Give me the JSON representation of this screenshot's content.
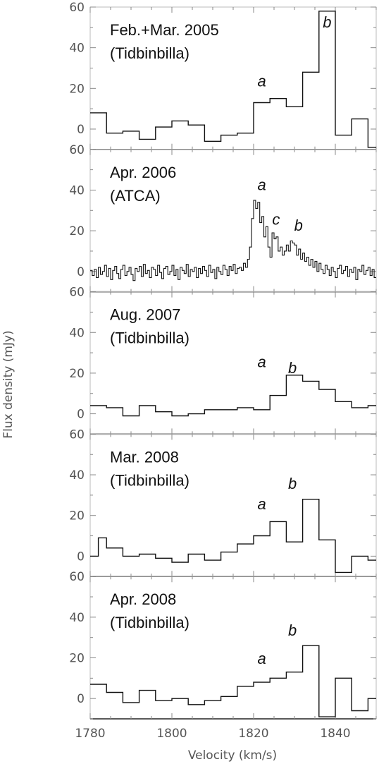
{
  "chart_data": {
    "type": "step",
    "xlabel": "Velocity (km/s)",
    "ylabel": "Flux density (mJy)",
    "xlim": [
      1780,
      1850
    ],
    "ylim": [
      -10,
      60
    ],
    "xticks": [
      "1780",
      "1800",
      "1820",
      "1840"
    ],
    "yticks": [
      "0",
      "20",
      "40",
      "60"
    ],
    "panels": [
      {
        "title_line1": "Feb.+Mar. 2005",
        "title_line2": "(Tidbinbilla)",
        "x": [
          1780.0,
          1784.0,
          1788.0,
          1792.0,
          1796.0,
          1800.0,
          1804.0,
          1808.0,
          1812.0,
          1816.0,
          1820.0,
          1824.0,
          1828.0,
          1832.0,
          1836.0,
          1840.0,
          1844.0,
          1848.0
        ],
        "y": [
          8,
          -2,
          -1,
          -5,
          1,
          4,
          2,
          -6,
          -3,
          -2,
          13,
          15,
          11,
          28,
          58,
          -3,
          5,
          -9
        ],
        "labels": [
          {
            "text": "a",
            "x": 1822.0,
            "y": 21
          },
          {
            "text": "b",
            "x": 1838.0,
            "y": 50
          }
        ]
      },
      {
        "title_line1": "Apr. 2006",
        "title_line2": "(ATCA)",
        "x": [
          1780.0,
          1780.5,
          1781.0,
          1781.5,
          1782.0,
          1782.5,
          1783.0,
          1783.5,
          1784.0,
          1784.5,
          1785.0,
          1785.5,
          1786.0,
          1786.5,
          1787.0,
          1787.5,
          1788.0,
          1788.5,
          1789.0,
          1789.5,
          1790.0,
          1790.5,
          1791.0,
          1791.5,
          1792.0,
          1792.5,
          1793.0,
          1793.5,
          1794.0,
          1794.5,
          1795.0,
          1795.5,
          1796.0,
          1796.5,
          1797.0,
          1797.5,
          1798.0,
          1798.5,
          1799.0,
          1799.5,
          1800.0,
          1800.5,
          1801.0,
          1801.5,
          1802.0,
          1802.5,
          1803.0,
          1803.5,
          1804.0,
          1804.5,
          1805.0,
          1805.5,
          1806.0,
          1806.5,
          1807.0,
          1807.5,
          1808.0,
          1808.5,
          1809.0,
          1809.5,
          1810.0,
          1810.5,
          1811.0,
          1811.5,
          1812.0,
          1812.5,
          1813.0,
          1813.5,
          1814.0,
          1814.5,
          1815.0,
          1815.5,
          1816.0,
          1816.5,
          1817.0,
          1817.5,
          1818.0,
          1818.5,
          1819.0,
          1819.5,
          1820.0,
          1820.5,
          1821.0,
          1821.5,
          1822.0,
          1822.5,
          1823.0,
          1823.5,
          1824.0,
          1824.5,
          1825.0,
          1825.5,
          1826.0,
          1826.5,
          1827.0,
          1827.5,
          1828.0,
          1828.5,
          1829.0,
          1829.5,
          1830.0,
          1830.5,
          1831.0,
          1831.5,
          1832.0,
          1832.5,
          1833.0,
          1833.5,
          1834.0,
          1834.5,
          1835.0,
          1835.5,
          1836.0,
          1836.5,
          1837.0,
          1837.5,
          1838.0,
          1838.5,
          1839.0,
          1839.5,
          1840.0,
          1840.5,
          1841.0,
          1841.5,
          1842.0,
          1842.5,
          1843.0,
          1843.5,
          1844.0,
          1844.5,
          1845.0,
          1845.5,
          1846.0,
          1846.5,
          1847.0,
          1847.5,
          1848.0,
          1848.5,
          1849.0,
          1849.5
        ],
        "y": [
          0.5,
          -2.0,
          1.0,
          -3.0,
          2.0,
          -1.5,
          0.0,
          3.0,
          -2.5,
          1.5,
          -4.0,
          0.5,
          2.5,
          -1.0,
          -3.5,
          1.0,
          3.0,
          -2.0,
          0.0,
          2.0,
          -1.5,
          -4.5,
          1.5,
          0.0,
          2.5,
          -2.5,
          3.5,
          -1.0,
          0.5,
          -3.0,
          2.0,
          1.0,
          -2.0,
          3.0,
          -0.5,
          -3.5,
          1.5,
          2.5,
          -1.5,
          0.0,
          3.0,
          -2.0,
          1.0,
          -4.0,
          2.0,
          0.5,
          -1.0,
          3.5,
          -2.5,
          1.0,
          0.0,
          2.0,
          -3.0,
          1.5,
          -1.0,
          2.5,
          0.5,
          -2.5,
          3.0,
          -0.5,
          1.0,
          -3.5,
          2.0,
          0.0,
          -1.5,
          3.0,
          1.0,
          -2.0,
          2.5,
          0.5,
          3.5,
          -1.0,
          1.5,
          2.0,
          0.5,
          4.0,
          2.0,
          6.0,
          12.0,
          26.0,
          35.0,
          31.0,
          34.0,
          24.0,
          27.0,
          17.0,
          22.0,
          12.0,
          7.0,
          19.0,
          16.0,
          17.0,
          10.0,
          12.0,
          8.0,
          10.0,
          13.0,
          10.0,
          15.0,
          14.0,
          13.0,
          8.0,
          11.0,
          6.0,
          9.0,
          5.0,
          7.0,
          3.0,
          6.0,
          2.0,
          5.0,
          0.0,
          4.0,
          1.0,
          -1.0,
          3.0,
          1.0,
          -2.0,
          2.0,
          0.0,
          -3.0,
          1.5,
          3.0,
          -1.0,
          0.5,
          2.5,
          -2.5,
          1.0,
          -0.5,
          2.0,
          -4.0,
          1.0,
          0.0,
          3.0,
          -1.5,
          0.5,
          2.0,
          -2.0,
          1.0,
          -3.0
        ],
        "labels": [
          {
            "text": "a",
            "x": 1822.0,
            "y": 40
          },
          {
            "text": "c",
            "x": 1825.5,
            "y": 23
          },
          {
            "text": "b",
            "x": 1831.0,
            "y": 20
          }
        ]
      },
      {
        "title_line1": "Aug. 2007",
        "title_line2": "(Tidbinbilla)",
        "x": [
          1780.0,
          1784.0,
          1788.0,
          1792.0,
          1796.0,
          1800.0,
          1804.0,
          1808.0,
          1812.0,
          1816.0,
          1820.0,
          1824.0,
          1828.0,
          1832.0,
          1836.0,
          1840.0,
          1844.0,
          1848.0
        ],
        "y": [
          4,
          3,
          -1,
          4,
          1,
          -1,
          0,
          2,
          2,
          3,
          2,
          9,
          19,
          16,
          12,
          6,
          3,
          4
        ],
        "labels": [
          {
            "text": "a",
            "x": 1822.0,
            "y": 23
          },
          {
            "text": "b",
            "x": 1829.5,
            "y": 20
          }
        ]
      },
      {
        "title_line1": "Mar. 2008",
        "title_line2": "(Tidbinbilla)",
        "x": [
          1780.0,
          1782.0,
          1784.0,
          1788.0,
          1792.0,
          1796.0,
          1800.0,
          1804.0,
          1808.0,
          1812.0,
          1816.0,
          1820.0,
          1824.0,
          1828.0,
          1832.0,
          1836.0,
          1840.0,
          1844.0,
          1848.0
        ],
        "y": [
          0,
          9,
          4,
          0,
          1,
          -1,
          -3,
          1,
          -2,
          2,
          6,
          10,
          17,
          7,
          28,
          8,
          -8,
          0,
          -2
        ],
        "labels": [
          {
            "text": "a",
            "x": 1822.0,
            "y": 23
          },
          {
            "text": "b",
            "x": 1829.5,
            "y": 33
          }
        ]
      },
      {
        "title_line1": "Apr. 2008",
        "title_line2": "(Tidbinbilla)",
        "x": [
          1780.0,
          1782.0,
          1784.0,
          1788.0,
          1792.0,
          1796.0,
          1800.0,
          1804.0,
          1808.0,
          1812.0,
          1816.0,
          1820.0,
          1824.0,
          1828.0,
          1832.0,
          1836.0,
          1840.0,
          1844.0,
          1848.0
        ],
        "y": [
          7,
          7,
          3,
          -2,
          4,
          -1,
          0,
          -3,
          -1,
          1,
          6,
          8,
          10,
          13,
          26,
          -9,
          10,
          -6,
          0
        ],
        "labels": [
          {
            "text": "a",
            "x": 1822.0,
            "y": 17
          },
          {
            "text": "b",
            "x": 1829.5,
            "y": 31
          }
        ]
      }
    ]
  }
}
